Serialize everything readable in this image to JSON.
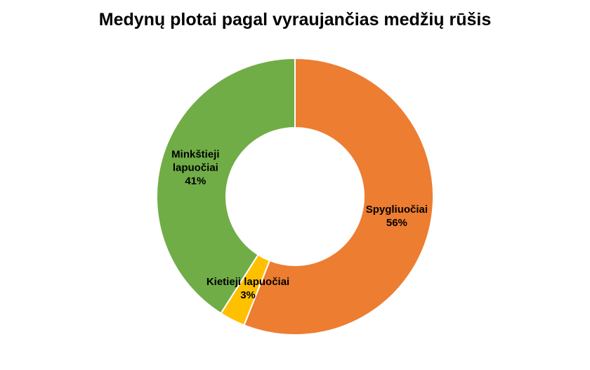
{
  "chart_data": {
    "type": "pie",
    "title": "Medynų plotai pagal vyraujančias medžių rūšis",
    "categories": [
      "Spygliuočiai",
      "Kietieji lapuočiai",
      "Minkštieji lapuočiai"
    ],
    "values": [
      56,
      3,
      41
    ],
    "value_labels": [
      "56%",
      "3%",
      "41%"
    ],
    "colors": [
      "#ED7D31",
      "#FFC000",
      "#70AD47"
    ],
    "donut": true
  }
}
